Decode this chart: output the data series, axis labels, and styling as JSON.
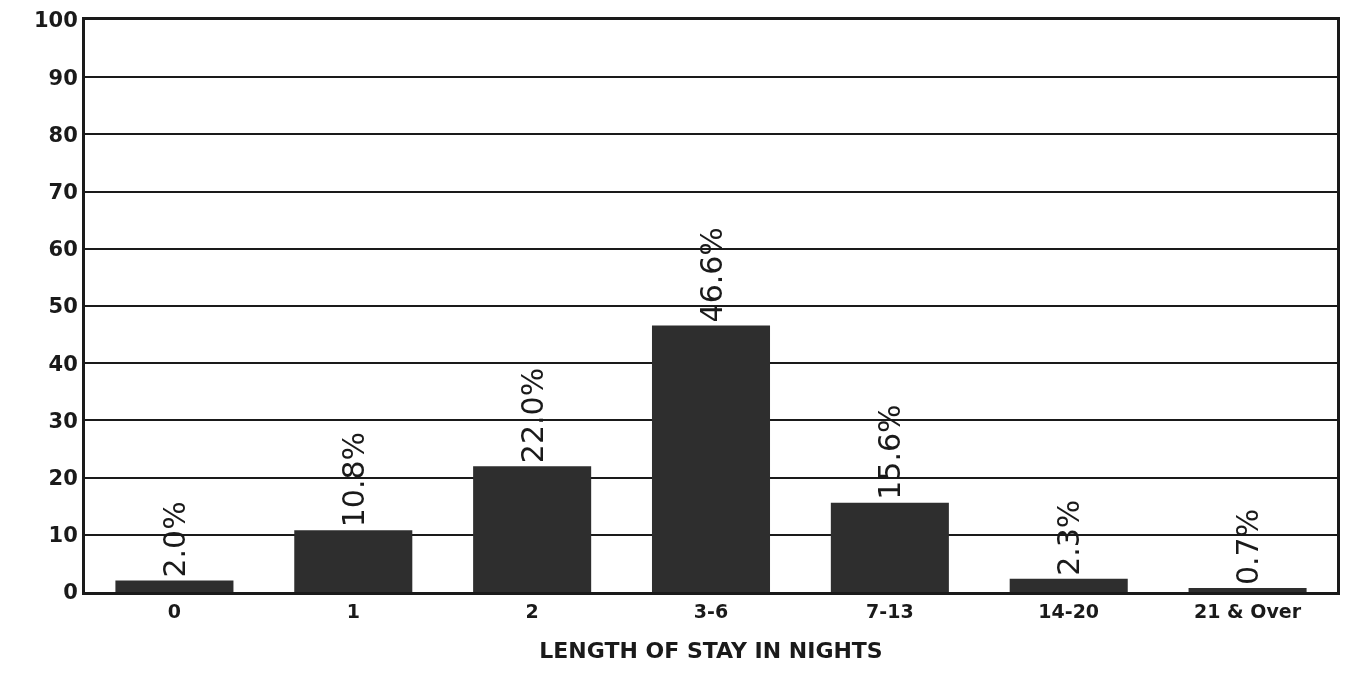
{
  "chart_data": {
    "type": "bar",
    "xlabel": "LENGTH OF STAY IN NIGHTS",
    "categories": [
      "0",
      "1",
      "2",
      "3-6",
      "7-13",
      "14-20",
      "21 & Over"
    ],
    "values": [
      2.0,
      10.8,
      22.0,
      46.6,
      15.6,
      2.3,
      0.7
    ],
    "value_labels": [
      "2.0%",
      "10.8%",
      "22.0%",
      "46.6%",
      "15.6%",
      "2.3%",
      "0.7%"
    ],
    "color": "#2e2e2e",
    "ylim": [
      0,
      100
    ],
    "yticks": [
      0,
      10,
      20,
      30,
      40,
      50,
      60,
      70,
      80,
      90,
      100
    ],
    "grid": "y",
    "legend": false
  }
}
